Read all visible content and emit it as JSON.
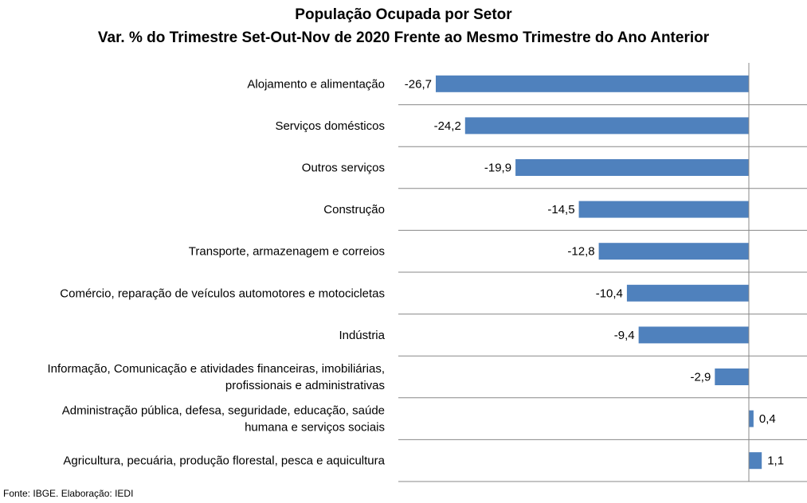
{
  "chart_data": {
    "type": "bar",
    "orientation": "horizontal",
    "title": "População Ocupada por Setor",
    "subtitle": "Var. % do Trimestre Set-Out-Nov de 2020 Frente ao Mesmo Trimestre do Ano Anterior",
    "categories": [
      [
        "Alojamento e alimentação"
      ],
      [
        "Serviços domésticos"
      ],
      [
        "Outros serviços"
      ],
      [
        "Construção"
      ],
      [
        "Transporte, armazenagem e correios"
      ],
      [
        "Comércio, reparação de veículos automotores e motocicletas"
      ],
      [
        "Indústria"
      ],
      [
        "Informação, Comunicação e atividades financeiras, imobiliárias,",
        "profissionais e administrativas"
      ],
      [
        "Administração pública, defesa, seguridade, educação, saúde",
        "humana e serviços sociais"
      ],
      [
        "Agricultura, pecuária, produção florestal, pesca e aquicultura"
      ]
    ],
    "values": [
      -26.7,
      -24.2,
      -19.9,
      -14.5,
      -12.8,
      -10.4,
      -9.4,
      -2.9,
      0.4,
      1.1
    ],
    "value_labels": [
      "-26,7",
      "-24,2",
      "-19,9",
      "-14,5",
      "-12,8",
      "-10,4",
      "-9,4",
      "-2,9",
      "0,4",
      "1,1"
    ],
    "xlim": [
      -30,
      5
    ],
    "bar_color": "#4f81bd",
    "grid": "horizontal separators",
    "legend": "none"
  },
  "source": "Fonte: IBGE. Elaboração: IEDI"
}
